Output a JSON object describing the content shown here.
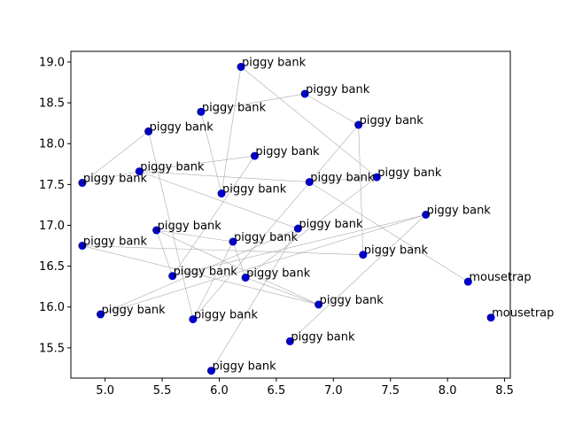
{
  "chart_data": {
    "type": "scatter",
    "title": "",
    "xlabel": "",
    "ylabel": "",
    "xlim": [
      4.7,
      8.55
    ],
    "ylim": [
      15.13,
      19.13
    ],
    "grid": false,
    "marker_color": "#0000cc",
    "line_color": "#aaaaaa",
    "x_ticks": [
      {
        "value": 5.0,
        "label": "5.0"
      },
      {
        "value": 5.5,
        "label": "5.5"
      },
      {
        "value": 6.0,
        "label": "6.0"
      },
      {
        "value": 6.5,
        "label": "6.5"
      },
      {
        "value": 7.0,
        "label": "7.0"
      },
      {
        "value": 7.5,
        "label": "7.5"
      },
      {
        "value": 8.0,
        "label": "8.0"
      },
      {
        "value": 8.5,
        "label": "8.5"
      }
    ],
    "y_ticks": [
      {
        "value": 15.5,
        "label": "15.5"
      },
      {
        "value": 16.0,
        "label": "16.0"
      },
      {
        "value": 16.5,
        "label": "16.5"
      },
      {
        "value": 17.0,
        "label": "17.0"
      },
      {
        "value": 17.5,
        "label": "17.5"
      },
      {
        "value": 18.0,
        "label": "18.0"
      },
      {
        "value": 18.5,
        "label": "18.5"
      },
      {
        "value": 19.0,
        "label": "19.0"
      }
    ],
    "points": [
      {
        "x": 6.19,
        "y": 18.94,
        "label": "piggy bank"
      },
      {
        "x": 6.75,
        "y": 18.61,
        "label": "piggy bank"
      },
      {
        "x": 5.84,
        "y": 18.39,
        "label": "piggy bank"
      },
      {
        "x": 7.22,
        "y": 18.23,
        "label": "piggy bank"
      },
      {
        "x": 5.38,
        "y": 18.15,
        "label": "piggy bank"
      },
      {
        "x": 6.31,
        "y": 17.85,
        "label": "piggy bank"
      },
      {
        "x": 5.3,
        "y": 17.66,
        "label": "piggy bank"
      },
      {
        "x": 7.38,
        "y": 17.59,
        "label": "piggy bank"
      },
      {
        "x": 6.79,
        "y": 17.53,
        "label": "piggy bank"
      },
      {
        "x": 4.8,
        "y": 17.52,
        "label": "piggy bank"
      },
      {
        "x": 6.02,
        "y": 17.39,
        "label": "piggy bank"
      },
      {
        "x": 7.81,
        "y": 17.13,
        "label": "piggy bank"
      },
      {
        "x": 6.69,
        "y": 16.96,
        "label": "piggy bank"
      },
      {
        "x": 5.45,
        "y": 16.94,
        "label": "piggy bank"
      },
      {
        "x": 6.12,
        "y": 16.8,
        "label": "piggy bank"
      },
      {
        "x": 4.8,
        "y": 16.75,
        "label": "piggy bank"
      },
      {
        "x": 7.26,
        "y": 16.64,
        "label": "piggy bank"
      },
      {
        "x": 5.59,
        "y": 16.38,
        "label": "piggy bank"
      },
      {
        "x": 6.23,
        "y": 16.36,
        "label": "piggy bank"
      },
      {
        "x": 8.18,
        "y": 16.31,
        "label": "mousetrap"
      },
      {
        "x": 6.87,
        "y": 16.03,
        "label": "piggy bank"
      },
      {
        "x": 4.96,
        "y": 15.91,
        "label": "piggy bank"
      },
      {
        "x": 5.77,
        "y": 15.85,
        "label": "piggy bank"
      },
      {
        "x": 8.38,
        "y": 15.87,
        "label": "mousetrap"
      },
      {
        "x": 6.62,
        "y": 15.58,
        "label": "piggy bank"
      },
      {
        "x": 5.93,
        "y": 15.22,
        "label": "piggy bank"
      }
    ],
    "edges": [
      [
        0,
        10
      ],
      [
        0,
        7
      ],
      [
        1,
        2
      ],
      [
        1,
        3
      ],
      [
        3,
        16
      ],
      [
        4,
        9
      ],
      [
        4,
        22
      ],
      [
        5,
        6
      ],
      [
        5,
        17
      ],
      [
        6,
        8
      ],
      [
        6,
        12
      ],
      [
        7,
        8
      ],
      [
        7,
        18
      ],
      [
        8,
        19
      ],
      [
        9,
        6
      ],
      [
        11,
        21
      ],
      [
        11,
        24
      ],
      [
        12,
        25
      ],
      [
        12,
        21
      ],
      [
        13,
        14
      ],
      [
        13,
        20
      ],
      [
        14,
        18
      ],
      [
        15,
        16
      ],
      [
        15,
        20
      ],
      [
        17,
        13
      ],
      [
        17,
        11
      ],
      [
        18,
        20
      ],
      [
        2,
        10
      ],
      [
        22,
        14
      ],
      [
        3,
        22
      ]
    ]
  }
}
